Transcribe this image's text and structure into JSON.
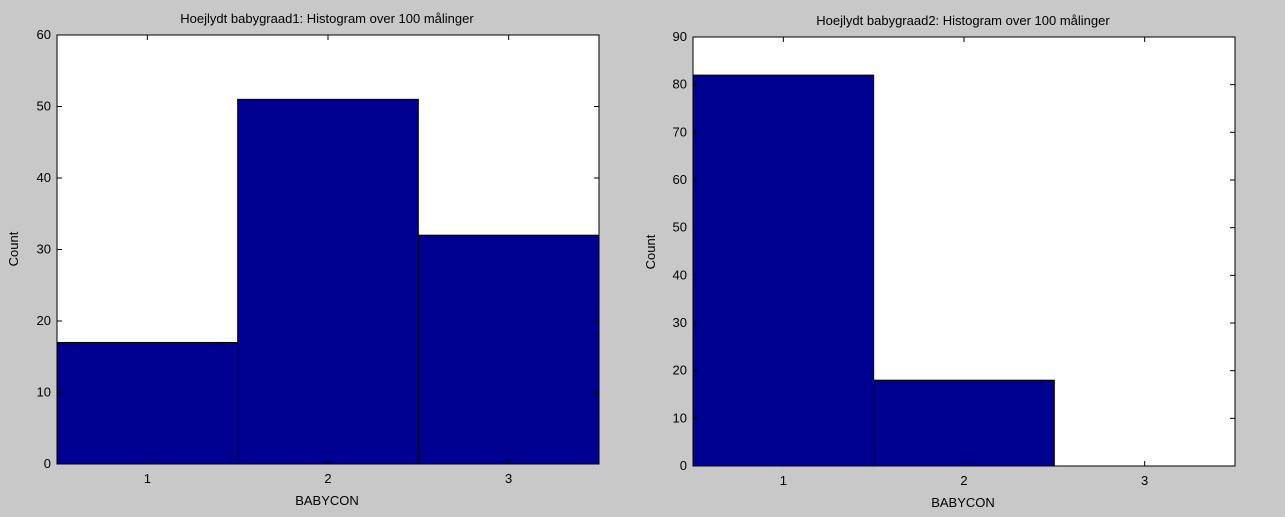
{
  "figure": {
    "background": "#c8c8c8",
    "axes_background": "#ffffff",
    "bar_color": "#000090"
  },
  "chart_data": [
    {
      "type": "bar",
      "title": "Hoejlydt babygraad1: Histogram over 100 målinger",
      "xlabel": "BABYCON",
      "ylabel": "Count",
      "categories": [
        "1",
        "2",
        "3"
      ],
      "values": [
        17,
        51,
        32
      ],
      "ylim": [
        0,
        60
      ],
      "yticks": [
        0,
        10,
        20,
        30,
        40,
        50,
        60
      ],
      "grid": false,
      "legend": false
    },
    {
      "type": "bar",
      "title": "Hoejlydt babygraad2: Histogram over 100 målinger",
      "xlabel": "BABYCON",
      "ylabel": "Count",
      "categories": [
        "1",
        "2",
        "3"
      ],
      "values": [
        82,
        18,
        0
      ],
      "ylim": [
        0,
        90
      ],
      "yticks": [
        0,
        10,
        20,
        30,
        40,
        50,
        60,
        70,
        80,
        90
      ],
      "grid": false,
      "legend": false
    }
  ]
}
